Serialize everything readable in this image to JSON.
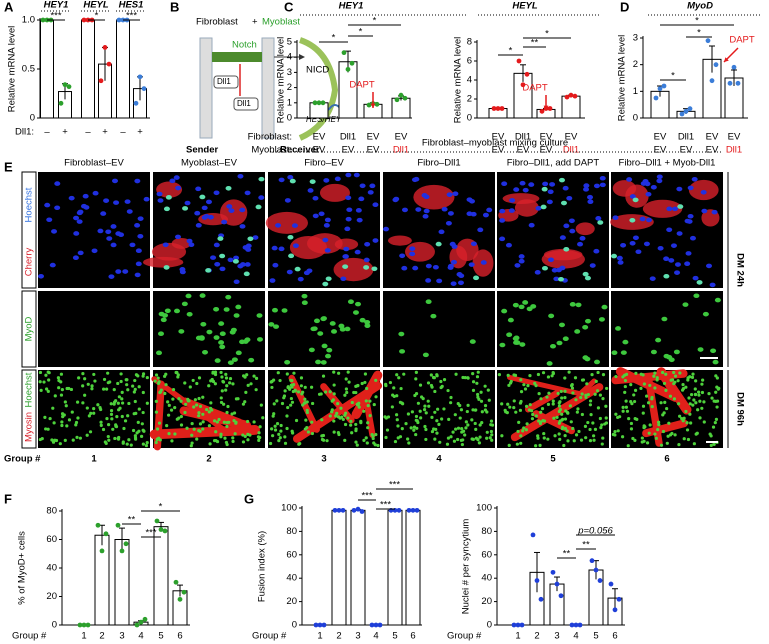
{
  "panel_labels": [
    "A",
    "B",
    "C",
    "D",
    "E",
    "F",
    "G"
  ],
  "chart_data": [
    {
      "type": "bar",
      "ylabel": "Relative mRNA level",
      "groups": [
        "HEY1",
        "HEYL",
        "HES1"
      ],
      "row_labels": [
        "Dll1:"
      ],
      "categories": [
        "–",
        "+",
        "–",
        "+",
        "–",
        "+"
      ],
      "values": [
        1.0,
        0.27,
        1.0,
        0.55,
        1.0,
        0.3
      ],
      "errors": [
        0.01,
        0.08,
        0.01,
        0.17,
        0.01,
        0.12
      ],
      "points": [
        [
          1.0,
          1.0,
          1.0
        ],
        [
          0.15,
          0.34,
          0.32
        ],
        [
          1.0,
          1.0,
          1.0
        ],
        [
          0.38,
          0.72,
          0.55
        ],
        [
          1.0,
          1.0,
          1.0
        ],
        [
          0.15,
          0.42,
          0.3
        ]
      ],
      "point_color": [
        "#2ca02c",
        "#2ca02c",
        "#e41a1c",
        "#e41a1c",
        "#3b7dd8",
        "#3b7dd8"
      ],
      "annotations": [
        "***",
        "*",
        "***"
      ],
      "ylim": [
        0,
        1
      ],
      "yticks": [
        0,
        0.5,
        {
          "value": 1,
          "label": "1.0"
        }
      ]
    },
    {
      "type": "bar",
      "title": "HEY1",
      "ylabel": "Relative mRNA level",
      "row_labels": [
        "Fibroblast:",
        "Myoblast:"
      ],
      "categories": [
        "EV",
        "Dll1",
        "EV",
        "EV"
      ],
      "categories_row2": [
        "EV",
        "EV",
        "EV",
        "Dll1"
      ],
      "categories_row2_colors": [
        "#000",
        "#000",
        "#000",
        "#e41a1c"
      ],
      "values": [
        1.0,
        3.7,
        0.9,
        1.3
      ],
      "errors": [
        0.02,
        0.7,
        0.1,
        0.15
      ],
      "points": [
        [
          1.0,
          1.0,
          1.0
        ],
        [
          4.3,
          3.2,
          3.6
        ],
        [
          0.85,
          0.95,
          0.9
        ],
        [
          1.2,
          1.5,
          1.3
        ]
      ],
      "point_color": "#2ca02c",
      "annotations": [
        "*",
        "*",
        "*"
      ],
      "arrow_label": "DAPT",
      "arrow_color": "#e41a1c",
      "ylim": [
        0,
        5
      ],
      "yticks": [
        0,
        1,
        2,
        3,
        4,
        5
      ]
    },
    {
      "type": "bar",
      "title": "HEYL",
      "ylabel": "Relative mRNA level",
      "categories": [
        "EV",
        "Dll1",
        "EV",
        "EV"
      ],
      "categories_row2": [
        "EV",
        "EV",
        "EV",
        "Dll1"
      ],
      "categories_row2_colors": [
        "#000",
        "#000",
        "#000",
        "#e41a1c"
      ],
      "values": [
        1.0,
        4.7,
        0.9,
        2.3
      ],
      "errors": [
        0.02,
        0.9,
        0.1,
        0.1
      ],
      "points": [
        [
          1.0,
          1.0,
          1.0
        ],
        [
          6.0,
          3.5,
          4.6
        ],
        [
          0.7,
          1.0,
          1.0
        ],
        [
          2.2,
          2.4,
          2.3
        ]
      ],
      "point_color": "#e41a1c",
      "annotations": [
        "*",
        "**",
        "*"
      ],
      "arrow_label": "DAPT",
      "arrow_color": "#e41a1c",
      "ylim": [
        0,
        8
      ],
      "yticks": [
        0,
        2,
        4,
        6,
        8
      ]
    },
    {
      "type": "bar",
      "title": "MyoD",
      "ylabel": "Relative mRNA level",
      "categories": [
        "EV",
        "Dll1",
        "EV",
        "EV"
      ],
      "categories_row2": [
        "EV",
        "EV",
        "EV",
        "Dll1"
      ],
      "categories_row2_colors": [
        "#000",
        "#000",
        "#000",
        "#e41a1c"
      ],
      "values": [
        1.0,
        0.25,
        2.2,
        1.5
      ],
      "errors": [
        0.2,
        0.1,
        0.5,
        0.3
      ],
      "points": [
        [
          0.75,
          1.1,
          1.2
        ],
        [
          0.15,
          0.25,
          0.35
        ],
        [
          2.9,
          1.4,
          2.0
        ],
        [
          1.3,
          1.9,
          1.3
        ]
      ],
      "point_color": "#3b7dd8",
      "annotations": [
        "*",
        "*",
        "*"
      ],
      "arrow_label": "DAPT",
      "arrow_color": "#e41a1c",
      "ylim": [
        0,
        3
      ],
      "yticks": [
        0,
        1,
        2,
        3
      ]
    },
    {
      "type": "bar",
      "ylabel": "% of MyoD+ cells",
      "xlabel": "Group #",
      "categories": [
        "1",
        "2",
        "3",
        "4",
        "5",
        "6"
      ],
      "values": [
        0,
        63,
        60,
        2,
        69,
        24
      ],
      "errors": [
        0,
        7,
        8,
        1,
        3,
        4
      ],
      "points": [
        [
          0,
          0,
          0
        ],
        [
          70,
          52,
          64
        ],
        [
          70,
          52,
          57
        ],
        [
          0,
          2,
          4
        ],
        [
          73,
          67,
          66
        ],
        [
          30,
          18,
          23
        ]
      ],
      "point_color": "#2ca02c",
      "annotations": [
        "**",
        "***",
        "*"
      ],
      "ylim": [
        0,
        80
      ],
      "yticks": [
        0,
        20,
        40,
        60,
        80
      ]
    },
    {
      "type": "bar",
      "ylabel": "Fusion index (%)",
      "xlabel": "Group #",
      "categories": [
        "1",
        "2",
        "3",
        "4",
        "5",
        "6"
      ],
      "values": [
        0,
        98,
        98,
        0,
        98,
        98
      ],
      "errors": [
        0,
        0.5,
        0.6,
        0,
        0.4,
        0.4
      ],
      "points": [
        [
          0,
          0,
          0
        ],
        [
          98,
          98,
          98
        ],
        [
          98,
          99,
          97
        ],
        [
          0,
          0,
          0
        ],
        [
          98,
          98,
          98
        ],
        [
          98,
          98,
          98
        ]
      ],
      "point_color": "#1f3fd8",
      "annotations": [
        "***",
        "***",
        "***"
      ],
      "ylim": [
        0,
        100
      ],
      "yticks": [
        0,
        20,
        40,
        60,
        80,
        100
      ]
    },
    {
      "type": "bar",
      "ylabel": "Nuclei # per syncytium",
      "xlabel": "Group #",
      "categories": [
        "1",
        "2",
        "3",
        "4",
        "5",
        "6"
      ],
      "values": [
        0,
        45,
        35,
        0,
        47,
        23
      ],
      "errors": [
        0,
        17,
        6,
        0,
        8,
        8
      ],
      "points": [
        [
          0,
          0,
          0
        ],
        [
          77,
          38,
          22
        ],
        [
          45,
          35,
          25
        ],
        [
          0,
          0,
          0
        ],
        [
          55,
          47,
          38
        ],
        [
          35,
          13,
          22
        ]
      ],
      "point_color": "#1f3fd8",
      "annotations": [
        "**",
        "**",
        "p=0.056"
      ],
      "ylim": [
        0,
        100
      ],
      "yticks": [
        0,
        20,
        40,
        60,
        80,
        100
      ]
    }
  ],
  "diagram": {
    "fibroblast": "Fibroblast",
    "plus": "+",
    "myoblast": "Myoblast",
    "notch": "Notch",
    "nicd": "NICD",
    "ligand": "Dll1",
    "sender": "Sender",
    "receiver": "Receiver",
    "target": "HES/HEY"
  },
  "micrographs": {
    "mixing_header": "Fibroblast–myoblast mixing culture",
    "columns": [
      "Fibroblast–EV",
      "Myoblast–EV",
      "Fibro–EV",
      "Fibro–Dll1",
      "Fibro–Dll1, add DAPT",
      "Fibro–Dll1 + Myob-Dll1"
    ],
    "row1_stains": [
      "Hoechst",
      "Cherry"
    ],
    "row2_stain": "MyoD",
    "row3_stains": [
      "Myosin",
      "Hoechst"
    ],
    "conditions": [
      "DM 24h",
      "DM 96h"
    ],
    "group_label": "Group #",
    "groups": [
      "1",
      "2",
      "3",
      "4",
      "5",
      "6"
    ]
  }
}
